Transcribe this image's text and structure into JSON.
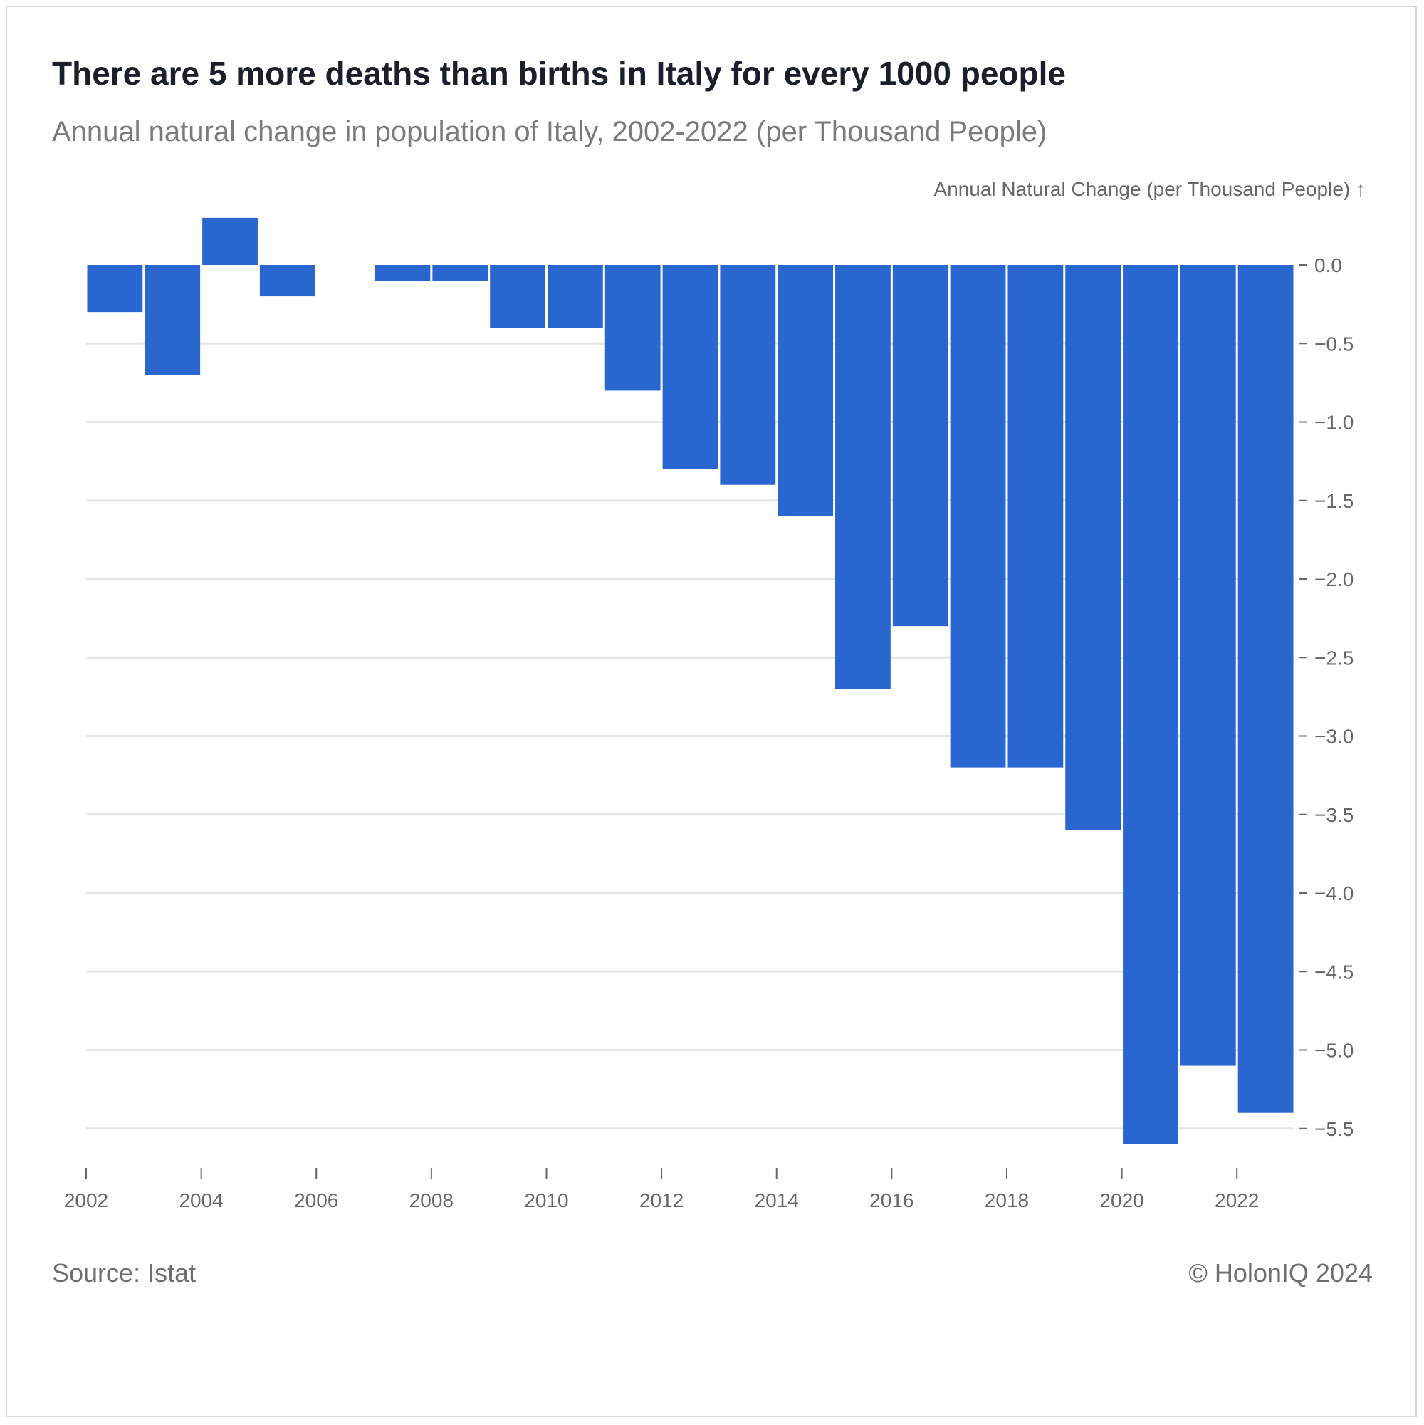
{
  "title": "There are 5 more deaths than births in Italy for every 1000 people",
  "subtitle": "Annual natural change in population of Italy, 2002-2022 (per Thousand People)",
  "footer": {
    "source": "Source: Istat",
    "credit": "© HolonIQ 2024"
  },
  "colors": {
    "bar": "#2a66cf",
    "grid": "#e6e6e6",
    "axis_text": "#666666"
  },
  "chart_data": {
    "type": "bar",
    "title": "There are 5 more deaths than births in Italy for every 1000 people",
    "subtitle": "Annual natural change in population of Italy, 2002-2022 (per Thousand People)",
    "ylabel": "Annual Natural Change (per Thousand People) ↑",
    "xlabel": "",
    "categories": [
      2002,
      2003,
      2004,
      2005,
      2006,
      2007,
      2008,
      2009,
      2010,
      2011,
      2012,
      2013,
      2014,
      2015,
      2016,
      2017,
      2018,
      2019,
      2020,
      2021,
      2022
    ],
    "values": [
      -0.3,
      -0.7,
      0.3,
      -0.2,
      0.0,
      -0.1,
      -0.1,
      -0.4,
      -0.4,
      -0.8,
      -1.3,
      -1.4,
      -1.6,
      -2.7,
      -2.3,
      -3.2,
      -3.2,
      -3.6,
      -5.6,
      -5.1,
      -5.4
    ],
    "x_ticks": [
      "2002",
      "2004",
      "2006",
      "2008",
      "2010",
      "2012",
      "2014",
      "2016",
      "2018",
      "2020",
      "2022"
    ],
    "y_ticks": [
      "0.0",
      "−0.5",
      "−1.0",
      "−1.5",
      "−2.0",
      "−2.5",
      "−3.0",
      "−3.5",
      "−4.0",
      "−4.5",
      "−5.0",
      "−5.5"
    ],
    "y_tick_values": [
      0,
      -0.5,
      -1.0,
      -1.5,
      -2.0,
      -2.5,
      -3.0,
      -3.5,
      -4.0,
      -4.5,
      -5.0,
      -5.5
    ],
    "ylim": [
      -5.6,
      0.3
    ],
    "y_axis_side": "right",
    "grid": true,
    "legend": "none"
  }
}
